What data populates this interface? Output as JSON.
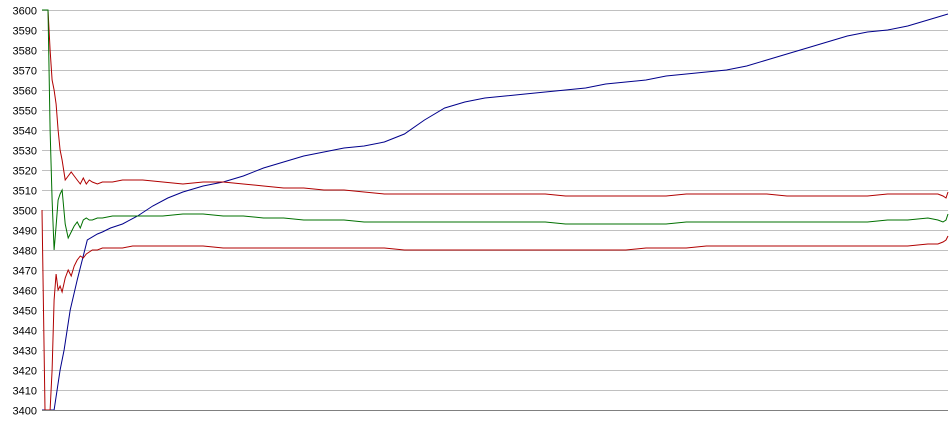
{
  "chart_data": {
    "type": "line",
    "title": "",
    "xlabel": "",
    "ylabel": "",
    "ylim": [
      3400,
      3600
    ],
    "y_ticks": [
      3400,
      3410,
      3420,
      3430,
      3440,
      3450,
      3460,
      3470,
      3480,
      3490,
      3500,
      3510,
      3520,
      3530,
      3540,
      3550,
      3560,
      3570,
      3580,
      3590,
      3600
    ],
    "y_tick_labels": [
      "3400",
      "3410",
      "3420",
      "3430",
      "3440",
      "3450",
      "3460",
      "3470",
      "3480",
      "3490",
      "3500",
      "3510",
      "3520",
      "3530",
      "3540",
      "3550",
      "3560",
      "3570",
      "3580",
      "3590",
      "3600"
    ],
    "grid": true,
    "legend": "none",
    "xlim": [
      0,
      900
    ],
    "series": [
      {
        "color": "#00008b",
        "x": [
          0,
          12,
          15,
          18,
          22,
          28,
          35,
          45,
          55,
          60,
          64,
          68,
          80,
          95,
          110,
          125,
          140,
          160,
          180,
          200,
          220,
          240,
          260,
          280,
          300,
          320,
          340,
          360,
          380,
          400,
          420,
          440,
          460,
          480,
          500,
          520,
          540,
          560,
          580,
          600,
          620,
          640,
          660,
          680,
          700,
          720,
          740,
          760,
          780,
          800,
          820,
          840,
          860,
          880,
          900
        ],
        "y": [
          3400,
          3400,
          3410,
          3420,
          3430,
          3450,
          3465,
          3485,
          3488,
          3489,
          3490,
          3491,
          3493,
          3497,
          3502,
          3506,
          3509,
          3512,
          3514,
          3517,
          3521,
          3524,
          3527,
          3529,
          3531,
          3532,
          3534,
          3538,
          3545,
          3551,
          3554,
          3556,
          3557,
          3558,
          3559,
          3560,
          3561,
          3563,
          3564,
          3565,
          3567,
          3568,
          3569,
          3570,
          3572,
          3575,
          3578,
          3581,
          3584,
          3587,
          3589,
          3590,
          3592,
          3595,
          3598
        ]
      },
      {
        "color": "#b00000",
        "x": [
          0,
          3,
          6,
          8,
          10,
          12,
          14,
          16,
          18,
          20,
          23,
          26,
          29,
          32,
          35,
          38,
          41,
          44,
          47,
          50,
          55,
          60,
          70,
          80,
          90,
          100,
          120,
          140,
          160,
          180,
          200,
          220,
          240,
          260,
          280,
          300,
          320,
          340,
          360,
          380,
          400,
          420,
          440,
          460,
          480,
          500,
          520,
          540,
          560,
          580,
          600,
          620,
          640,
          660,
          680,
          700,
          720,
          740,
          760,
          780,
          800,
          820,
          840,
          860,
          880,
          890,
          895,
          898,
          900
        ],
        "y": [
          3600,
          3600,
          3600,
          3580,
          3565,
          3560,
          3553,
          3540,
          3530,
          3525,
          3515,
          3517,
          3519,
          3517,
          3515,
          3513,
          3516,
          3513,
          3515,
          3514,
          3513,
          3514,
          3514,
          3515,
          3515,
          3515,
          3514,
          3513,
          3514,
          3514,
          3513,
          3512,
          3511,
          3511,
          3510,
          3510,
          3509,
          3508,
          3508,
          3508,
          3508,
          3508,
          3508,
          3508,
          3508,
          3508,
          3507,
          3507,
          3507,
          3507,
          3507,
          3507,
          3508,
          3508,
          3508,
          3508,
          3508,
          3507,
          3507,
          3507,
          3507,
          3507,
          3508,
          3508,
          3508,
          3508,
          3507,
          3506,
          3509
        ]
      },
      {
        "color": "#007000",
        "x": [
          0,
          3,
          6,
          8,
          10,
          12,
          14,
          16,
          18,
          20,
          23,
          26,
          29,
          32,
          35,
          38,
          41,
          44,
          47,
          50,
          55,
          60,
          70,
          80,
          90,
          100,
          120,
          140,
          160,
          180,
          200,
          220,
          240,
          260,
          280,
          300,
          320,
          340,
          360,
          380,
          400,
          420,
          440,
          460,
          480,
          500,
          520,
          540,
          560,
          580,
          600,
          620,
          640,
          660,
          680,
          700,
          720,
          740,
          760,
          780,
          800,
          820,
          840,
          860,
          880,
          890,
          895,
          898,
          900
        ],
        "y": [
          3600,
          3600,
          3600,
          3540,
          3505,
          3480,
          3492,
          3505,
          3508,
          3510,
          3493,
          3486,
          3489,
          3492,
          3494,
          3491,
          3495,
          3496,
          3495,
          3495,
          3496,
          3496,
          3497,
          3497,
          3497,
          3497,
          3497,
          3498,
          3498,
          3497,
          3497,
          3496,
          3496,
          3495,
          3495,
          3495,
          3494,
          3494,
          3494,
          3494,
          3494,
          3494,
          3494,
          3494,
          3494,
          3494,
          3493,
          3493,
          3493,
          3493,
          3493,
          3493,
          3494,
          3494,
          3494,
          3494,
          3494,
          3494,
          3494,
          3494,
          3494,
          3494,
          3495,
          3495,
          3496,
          3495,
          3494,
          3495,
          3498
        ]
      },
      {
        "color": "#b00000",
        "x": [
          0,
          3,
          6,
          8,
          10,
          12,
          14,
          16,
          18,
          20,
          23,
          26,
          29,
          32,
          35,
          38,
          41,
          44,
          47,
          50,
          55,
          60,
          70,
          80,
          90,
          100,
          120,
          140,
          160,
          180,
          200,
          220,
          240,
          260,
          280,
          300,
          320,
          340,
          360,
          380,
          400,
          420,
          440,
          460,
          480,
          500,
          520,
          540,
          560,
          580,
          600,
          620,
          640,
          660,
          680,
          700,
          720,
          740,
          760,
          780,
          800,
          820,
          840,
          860,
          880,
          890,
          895,
          898,
          900
        ],
        "y": [
          3500,
          3400,
          3400,
          3400,
          3420,
          3455,
          3468,
          3460,
          3462,
          3459,
          3466,
          3470,
          3467,
          3472,
          3475,
          3477,
          3476,
          3478,
          3479,
          3480,
          3480,
          3481,
          3481,
          3481,
          3482,
          3482,
          3482,
          3482,
          3482,
          3481,
          3481,
          3481,
          3481,
          3481,
          3481,
          3481,
          3481,
          3481,
          3480,
          3480,
          3480,
          3480,
          3480,
          3480,
          3480,
          3480,
          3480,
          3480,
          3480,
          3480,
          3481,
          3481,
          3481,
          3482,
          3482,
          3482,
          3482,
          3482,
          3482,
          3482,
          3482,
          3482,
          3482,
          3482,
          3483,
          3483,
          3484,
          3485,
          3487
        ]
      }
    ]
  }
}
